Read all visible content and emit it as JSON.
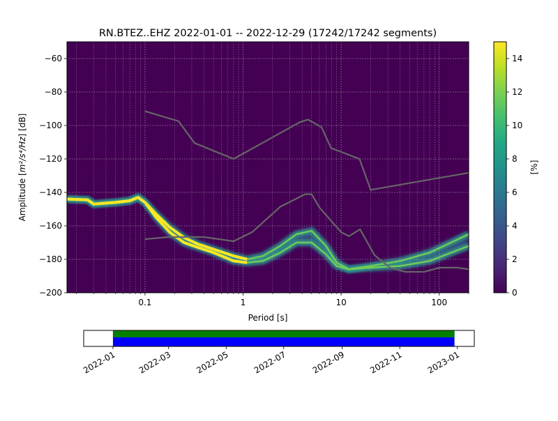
{
  "chart_data": {
    "type": "heatmap",
    "title": "RN.BTEZ..EHZ   2022-01-01 -- 2022-12-29  (17242/17242 segments)",
    "xlabel": "Period [s]",
    "ylabel_prefix": "Amplitude [",
    "ylabel_math": "m²/s⁴/Hz",
    "ylabel_suffix": "] [dB]",
    "xscale": "log",
    "xlim": [
      0.016,
      200
    ],
    "ylim": [
      -200,
      -50
    ],
    "xticks": [
      {
        "value": 0.1,
        "label": "0.1"
      },
      {
        "value": 1,
        "label": "1"
      },
      {
        "value": 10,
        "label": "10"
      },
      {
        "value": 100,
        "label": "100"
      }
    ],
    "yticks": [
      -200,
      -180,
      -160,
      -140,
      -120,
      -100,
      -80,
      -60
    ],
    "grid": true,
    "colorbar": {
      "label": "[%]",
      "range": [
        0,
        15
      ],
      "ticks": [
        0,
        2,
        4,
        6,
        8,
        10,
        12,
        14
      ],
      "colormap": "viridis"
    },
    "background_color": "#440154",
    "noise_model_color": "#666666",
    "high_noise_model": [
      [
        0.1,
        -91.5
      ],
      [
        0.22,
        -97.4
      ],
      [
        0.32,
        -110.5
      ],
      [
        0.8,
        -120
      ],
      [
        3.8,
        -98
      ],
      [
        4.6,
        -96.5
      ],
      [
        6.3,
        -101
      ],
      [
        7.9,
        -113.5
      ],
      [
        15.4,
        -120
      ],
      [
        20,
        -138.5
      ],
      [
        200,
        -128.3
      ]
    ],
    "low_noise_model": [
      [
        0.1,
        -168
      ],
      [
        0.17,
        -166.7
      ],
      [
        0.4,
        -166.7
      ],
      [
        0.8,
        -169.2
      ],
      [
        1.24,
        -163.7
      ],
      [
        2.4,
        -148.6
      ],
      [
        4.3,
        -141.1
      ],
      [
        5,
        -141.1
      ],
      [
        6,
        -149
      ],
      [
        10,
        -163.8
      ],
      [
        12,
        -166.2
      ],
      [
        15.6,
        -162.1
      ],
      [
        21.9,
        -177.5
      ],
      [
        31.6,
        -185
      ],
      [
        45,
        -187.5
      ],
      [
        70,
        -187.5
      ],
      [
        101,
        -185
      ],
      [
        154,
        -185
      ],
      [
        200,
        -186
      ]
    ],
    "psd_ridges": [
      {
        "name": "",
        "points": [
          [
            0.016,
            -144
          ],
          [
            0.026,
            -144.5
          ],
          [
            0.03,
            -147
          ],
          [
            0.05,
            -146
          ],
          [
            0.07,
            -145
          ],
          [
            0.085,
            -143
          ],
          [
            0.1,
            -146
          ],
          [
            0.13,
            -153
          ],
          [
            0.18,
            -161
          ],
          [
            0.25,
            -167
          ],
          [
            0.35,
            -171
          ],
          [
            0.5,
            -174
          ],
          [
            0.8,
            -178
          ],
          [
            1.1,
            -180
          ],
          [
            1.6,
            -178
          ],
          [
            2.4,
            -172
          ],
          [
            3.5,
            -165
          ],
          [
            5,
            -163
          ],
          [
            7,
            -172
          ],
          [
            9,
            -182
          ],
          [
            12,
            -186
          ],
          [
            20,
            -184
          ],
          [
            40,
            -181
          ],
          [
            80,
            -176
          ],
          [
            200,
            -165
          ]
        ]
      },
      {
        "name": "",
        "points": [
          [
            0.016,
            -144
          ],
          [
            0.026,
            -144.5
          ],
          [
            0.03,
            -147
          ],
          [
            0.05,
            -146
          ],
          [
            0.07,
            -145
          ],
          [
            0.085,
            -143
          ],
          [
            0.1,
            -146
          ],
          [
            0.13,
            -155
          ],
          [
            0.18,
            -164
          ],
          [
            0.25,
            -170
          ],
          [
            0.35,
            -173
          ],
          [
            0.5,
            -176
          ],
          [
            0.8,
            -181
          ],
          [
            1.1,
            -182
          ],
          [
            1.6,
            -181
          ],
          [
            2.4,
            -176
          ],
          [
            3.5,
            -170
          ],
          [
            5,
            -170
          ],
          [
            7,
            -177
          ],
          [
            9,
            -184
          ],
          [
            12,
            -186
          ],
          [
            20,
            -185
          ],
          [
            40,
            -184
          ],
          [
            80,
            -181
          ],
          [
            200,
            -172
          ]
        ]
      }
    ],
    "timeline": {
      "start": "2022-01-01",
      "end": "2022-12-29",
      "axis_start": "2021-12-01",
      "axis_end": "2023-01-19",
      "ticks": [
        "2022-01",
        "2022-03",
        "2022-05",
        "2022-07",
        "2022-09",
        "2022-11",
        "2023-01"
      ],
      "data_color": "#0000ff",
      "gap_color": "#008000"
    }
  }
}
